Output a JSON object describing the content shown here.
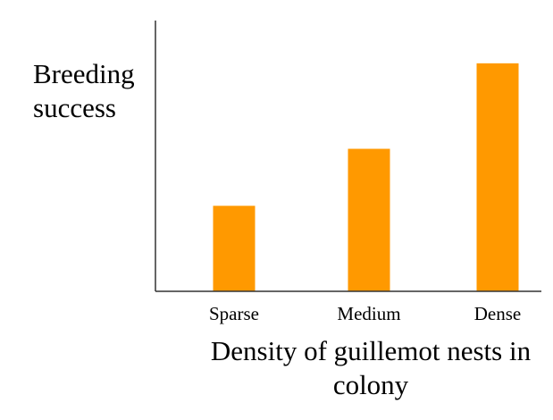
{
  "chart_data": {
    "type": "bar",
    "title": "",
    "xlabel": "Density of guillemot nests in colony",
    "ylabel": "Breeding success",
    "categories": [
      "Sparse",
      "Medium",
      "Dense"
    ],
    "values": [
      3,
      5,
      8
    ],
    "ylim": [
      0,
      9.5
    ],
    "y_ticks_shown": false,
    "grid": false,
    "legend": "none",
    "bar_color": "#FF9900",
    "axis_color": "#333333"
  }
}
